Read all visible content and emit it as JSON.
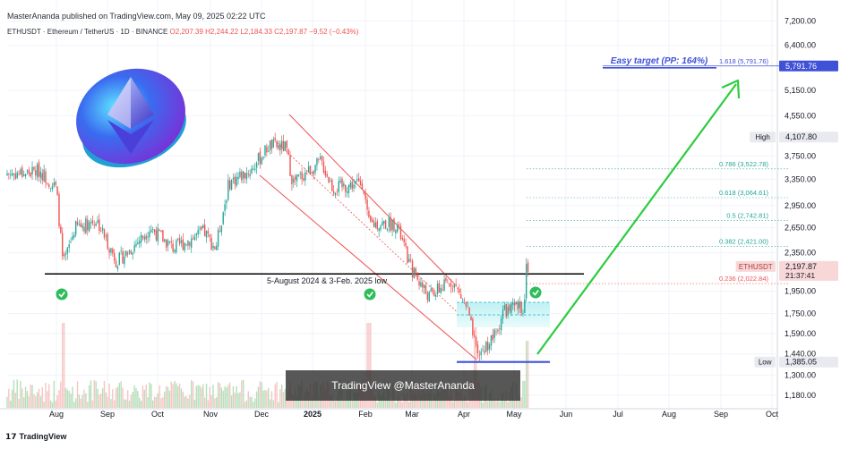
{
  "header": {
    "published": "MasterAnanda published on TradingView.com, May 09, 2025 02:22 UTC",
    "symbol": "ETHUSDT · Ethereum / TetherUS · 1D · BINANCE",
    "open": "O2,207.39",
    "high": "H2,244.22",
    "low": "L2,184.33",
    "close": "C2,197.87",
    "change": "−9.52 (−0.43%)"
  },
  "footer": {
    "logo_text": "TradingView"
  },
  "watermark": "TradingView @MasterAnanda",
  "colors": {
    "up": "#26a69a",
    "down": "#ef5350",
    "target_blue": "#3f51d6",
    "support_line": "#000000",
    "arrow_green": "#2ecc40",
    "channel_red": "#ef5350"
  },
  "chart_data": {
    "type": "candlestick",
    "series_name": "ETHUSDT",
    "y_scale": "log",
    "ylim": [
      1100,
      7500
    ],
    "y_ticks": [
      "7,200.00",
      "6,400.00",
      "5,150.00",
      "4,550.00",
      "3,750.00",
      "3,350.00",
      "2,950.00",
      "2,650.00",
      "2,350.00",
      "1,950.00",
      "1,750.00",
      "1,590.00",
      "1,440.00",
      "1,300.00",
      "1,180.00"
    ],
    "x_ticks": [
      "Aug",
      "Sep",
      "Oct",
      "Nov",
      "Dec",
      "2025",
      "Feb",
      "Mar",
      "Apr",
      "May",
      "Jun",
      "Jul",
      "Aug",
      "Sep",
      "Oct"
    ],
    "price_path": [
      [
        "2024-07-15",
        3450
      ],
      [
        "2024-07-22",
        3500
      ],
      [
        "2024-08-01",
        3200
      ],
      [
        "2024-08-05",
        2200
      ],
      [
        "2024-08-12",
        2650
      ],
      [
        "2024-08-25",
        2750
      ],
      [
        "2024-09-06",
        2250
      ],
      [
        "2024-09-15",
        2400
      ],
      [
        "2024-09-26",
        2650
      ],
      [
        "2024-10-10",
        2400
      ],
      [
        "2024-10-28",
        2600
      ],
      [
        "2024-11-04",
        2400
      ],
      [
        "2024-11-12",
        3300
      ],
      [
        "2024-11-25",
        3500
      ],
      [
        "2024-12-06",
        3950
      ],
      [
        "2024-12-16",
        3900
      ],
      [
        "2024-12-20",
        3300
      ],
      [
        "2025-01-06",
        3650
      ],
      [
        "2025-01-13",
        3200
      ],
      [
        "2025-01-31",
        3300
      ],
      [
        "2025-02-03",
        2700
      ],
      [
        "2025-02-20",
        2700
      ],
      [
        "2025-02-28",
        2200
      ],
      [
        "2025-03-11",
        1900
      ],
      [
        "2025-03-25",
        2050
      ],
      [
        "2025-04-03",
        1800
      ],
      [
        "2025-04-09",
        1420
      ],
      [
        "2025-04-21",
        1600
      ],
      [
        "2025-04-24",
        1770
      ],
      [
        "2025-05-07",
        1810
      ],
      [
        "2025-05-08",
        2200
      ]
    ],
    "fib_levels": [
      {
        "label": "1.618 (5,791.76)",
        "value": 5791.76
      },
      {
        "label": "0.786 (3,522.78)",
        "value": 3522.78
      },
      {
        "label": "0.618 (3,064.61)",
        "value": 3064.61
      },
      {
        "label": "0.5 (2,742.81)",
        "value": 2742.81
      },
      {
        "label": "0.382 (2,421.00)",
        "value": 2421.0
      },
      {
        "label": "0.236 (2,022.84)",
        "value": 2022.84
      }
    ],
    "price_badges": [
      {
        "label": "",
        "value_text": "5,791.76",
        "value": 5791.76,
        "color": "#3f51d6"
      },
      {
        "label": "High",
        "value_text": "4,107.80",
        "value": 4107.8,
        "color": "#e8eaf0"
      },
      {
        "label": "ETHUSDT",
        "value_text": "2,197.87",
        "sub_text": "21:37:41",
        "value": 2197.87,
        "color": "#f8d7d8"
      },
      {
        "label": "Low",
        "value_text": "1,385.05",
        "value": 1385.05,
        "color": "#e8eaf0"
      }
    ],
    "annotations": {
      "target_text": "Easy target (PP: 164%)",
      "support_text": "5-August 2024 & 3-Feb. 2025 low",
      "support_value": 2120,
      "low_value": 1385.05,
      "target_value": 5791.76
    }
  }
}
